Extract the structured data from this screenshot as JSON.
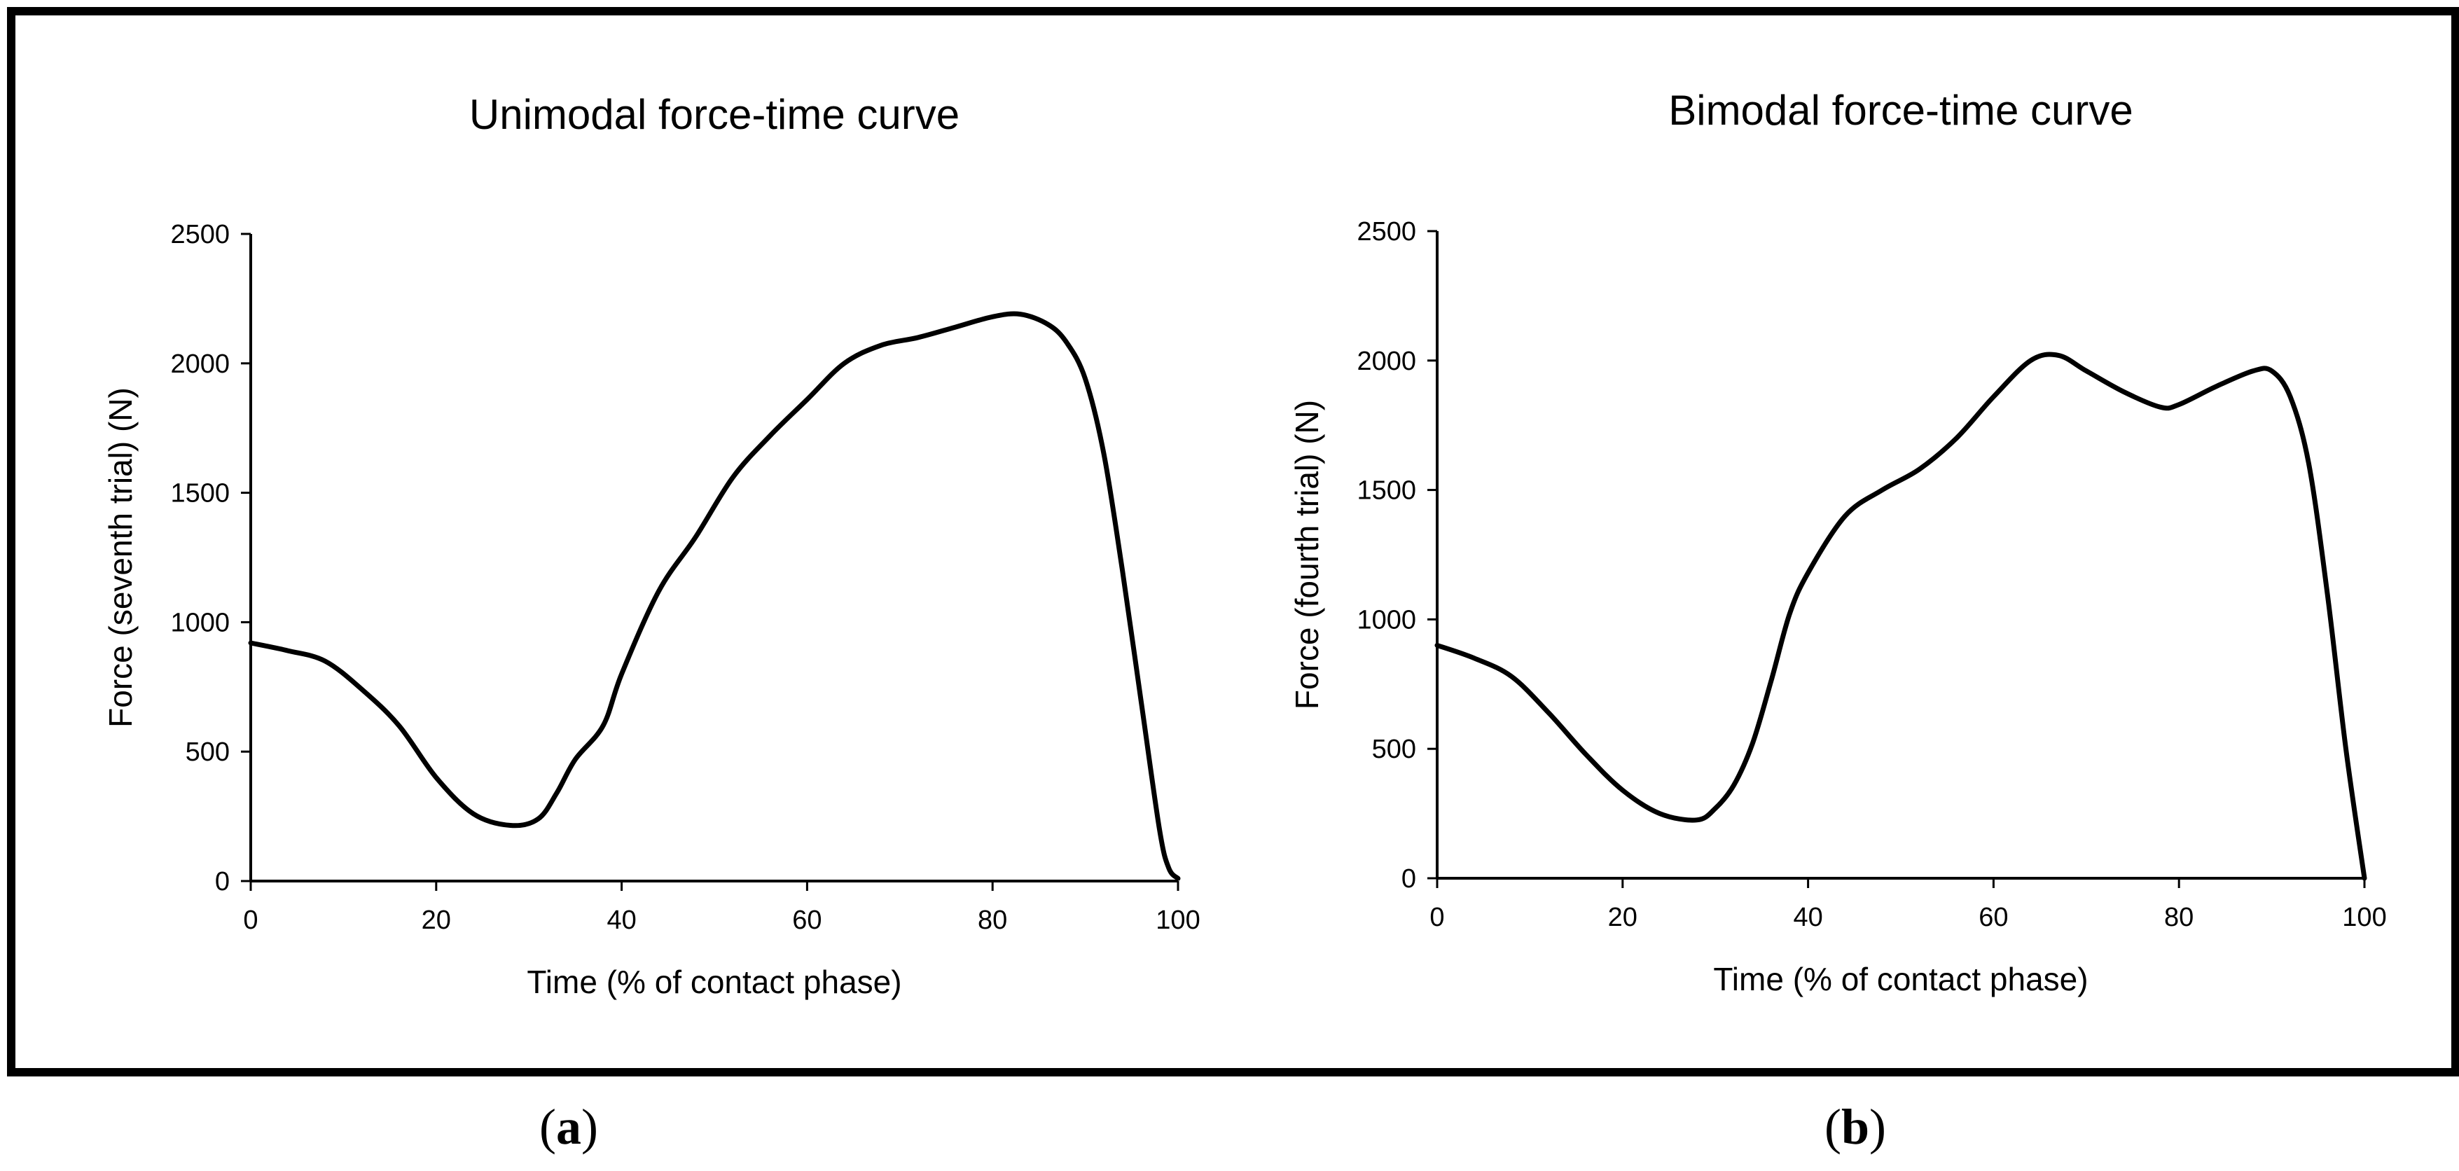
{
  "chart_data": [
    {
      "type": "line",
      "title": "Unimodal force-time curve",
      "xlabel": "Time (% of contact phase)",
      "ylabel": "Force (seventh trial) (N)",
      "xlim": [
        0,
        100
      ],
      "ylim": [
        0,
        2500
      ],
      "xticks": [
        0,
        20,
        40,
        60,
        80,
        100
      ],
      "yticks": [
        0,
        500,
        1000,
        1500,
        2000,
        2500
      ],
      "grid": false,
      "series": [
        {
          "name": "Force",
          "color": "#000000",
          "x": [
            0,
            4,
            8,
            12,
            16,
            20,
            24,
            28,
            31,
            33,
            35,
            38,
            40,
            44,
            48,
            52,
            56,
            60,
            64,
            68,
            72,
            76,
            80,
            83,
            86,
            88,
            90,
            92,
            94,
            96,
            98,
            99,
            100
          ],
          "y": [
            920,
            890,
            850,
            740,
            600,
            400,
            260,
            215,
            240,
            340,
            470,
            600,
            800,
            1120,
            1330,
            1560,
            1720,
            1860,
            2000,
            2070,
            2100,
            2140,
            2180,
            2190,
            2150,
            2080,
            1940,
            1650,
            1200,
            700,
            200,
            50,
            10
          ]
        }
      ]
    },
    {
      "type": "line",
      "title": "Bimodal force-time curve",
      "xlabel": "Time (% of contact phase)",
      "ylabel": "Force (fourth trial) (N)",
      "xlim": [
        0,
        100
      ],
      "ylim": [
        0,
        2500
      ],
      "xticks": [
        0,
        20,
        40,
        60,
        80,
        100
      ],
      "yticks": [
        0,
        500,
        1000,
        1500,
        2000,
        2500
      ],
      "grid": false,
      "series": [
        {
          "name": "Force",
          "color": "#000000",
          "x": [
            0,
            4,
            8,
            12,
            16,
            20,
            24,
            28,
            30,
            32,
            34,
            36,
            38,
            40,
            44,
            48,
            52,
            56,
            60,
            64,
            67,
            70,
            74,
            78,
            80,
            84,
            88,
            90,
            92,
            94,
            96,
            98,
            100
          ],
          "y": [
            900,
            850,
            780,
            640,
            480,
            340,
            250,
            225,
            270,
            360,
            520,
            760,
            1020,
            1180,
            1400,
            1500,
            1580,
            1700,
            1860,
            2000,
            2020,
            1960,
            1880,
            1820,
            1830,
            1900,
            1960,
            1960,
            1860,
            1600,
            1100,
            500,
            0
          ]
        }
      ]
    }
  ],
  "panel_labels": {
    "a": "a",
    "b": "b",
    "open": "(",
    "close": ")"
  }
}
